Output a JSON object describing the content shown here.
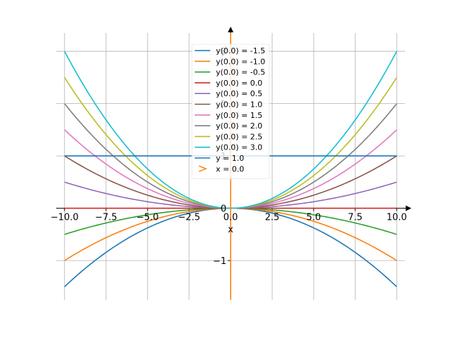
{
  "chart_data": {
    "type": "line",
    "xlabel": "x",
    "ylabel": "y",
    "xlim": [
      -10.5,
      10.5
    ],
    "ylim": [
      -1.75,
      3.35
    ],
    "xticks": [
      -10.0,
      -7.5,
      -5.0,
      -2.5,
      0.0,
      2.5,
      5.0,
      7.5,
      10.0
    ],
    "xtick_labels": [
      "−10.0",
      "−7.5",
      "−5.0",
      "−2.5",
      "0.0",
      "2.5",
      "5.0",
      "7.5",
      "10.0"
    ],
    "yticks": [
      -1,
      0,
      1,
      2,
      3
    ],
    "ytick_labels": [
      "−1",
      "0",
      "1",
      "2",
      "3"
    ],
    "grid": true,
    "legend_position": "top-center",
    "x_range": [
      -10,
      10
    ],
    "series": [
      {
        "name": "y(0.0) = -1.5",
        "kind": "parabola",
        "coef": -0.015,
        "color": "#1f77b4"
      },
      {
        "name": "y(0.0) = -1.0",
        "kind": "parabola",
        "coef": -0.01,
        "color": "#ff7f0e"
      },
      {
        "name": "y(0.0) = -0.5",
        "kind": "parabola",
        "coef": -0.005,
        "color": "#2ca02c"
      },
      {
        "name": "y(0.0) = 0.0",
        "kind": "parabola",
        "coef": 0.0,
        "color": "#d62728"
      },
      {
        "name": "y(0.0) = 0.5",
        "kind": "parabola",
        "coef": 0.005,
        "color": "#9467bd"
      },
      {
        "name": "y(0.0) = 1.0",
        "kind": "parabola",
        "coef": 0.01,
        "color": "#8c564b"
      },
      {
        "name": "y(0.0) = 1.5",
        "kind": "parabola",
        "coef": 0.015,
        "color": "#e377c2"
      },
      {
        "name": "y(0.0) = 2.0",
        "kind": "parabola",
        "coef": 0.02,
        "color": "#7f7f7f"
      },
      {
        "name": "y(0.0) = 2.5",
        "kind": "parabola",
        "coef": 0.025,
        "color": "#bcbd22"
      },
      {
        "name": "y(0.0) = 3.0",
        "kind": "parabola",
        "coef": 0.03,
        "color": "#17becf"
      },
      {
        "name": "y = 1.0",
        "kind": "hline",
        "value": 1.0,
        "color": "#1f77b4"
      },
      {
        "name": "x = 0.0",
        "kind": "vline",
        "value": 0.0,
        "color": "#ff7f0e"
      }
    ]
  }
}
